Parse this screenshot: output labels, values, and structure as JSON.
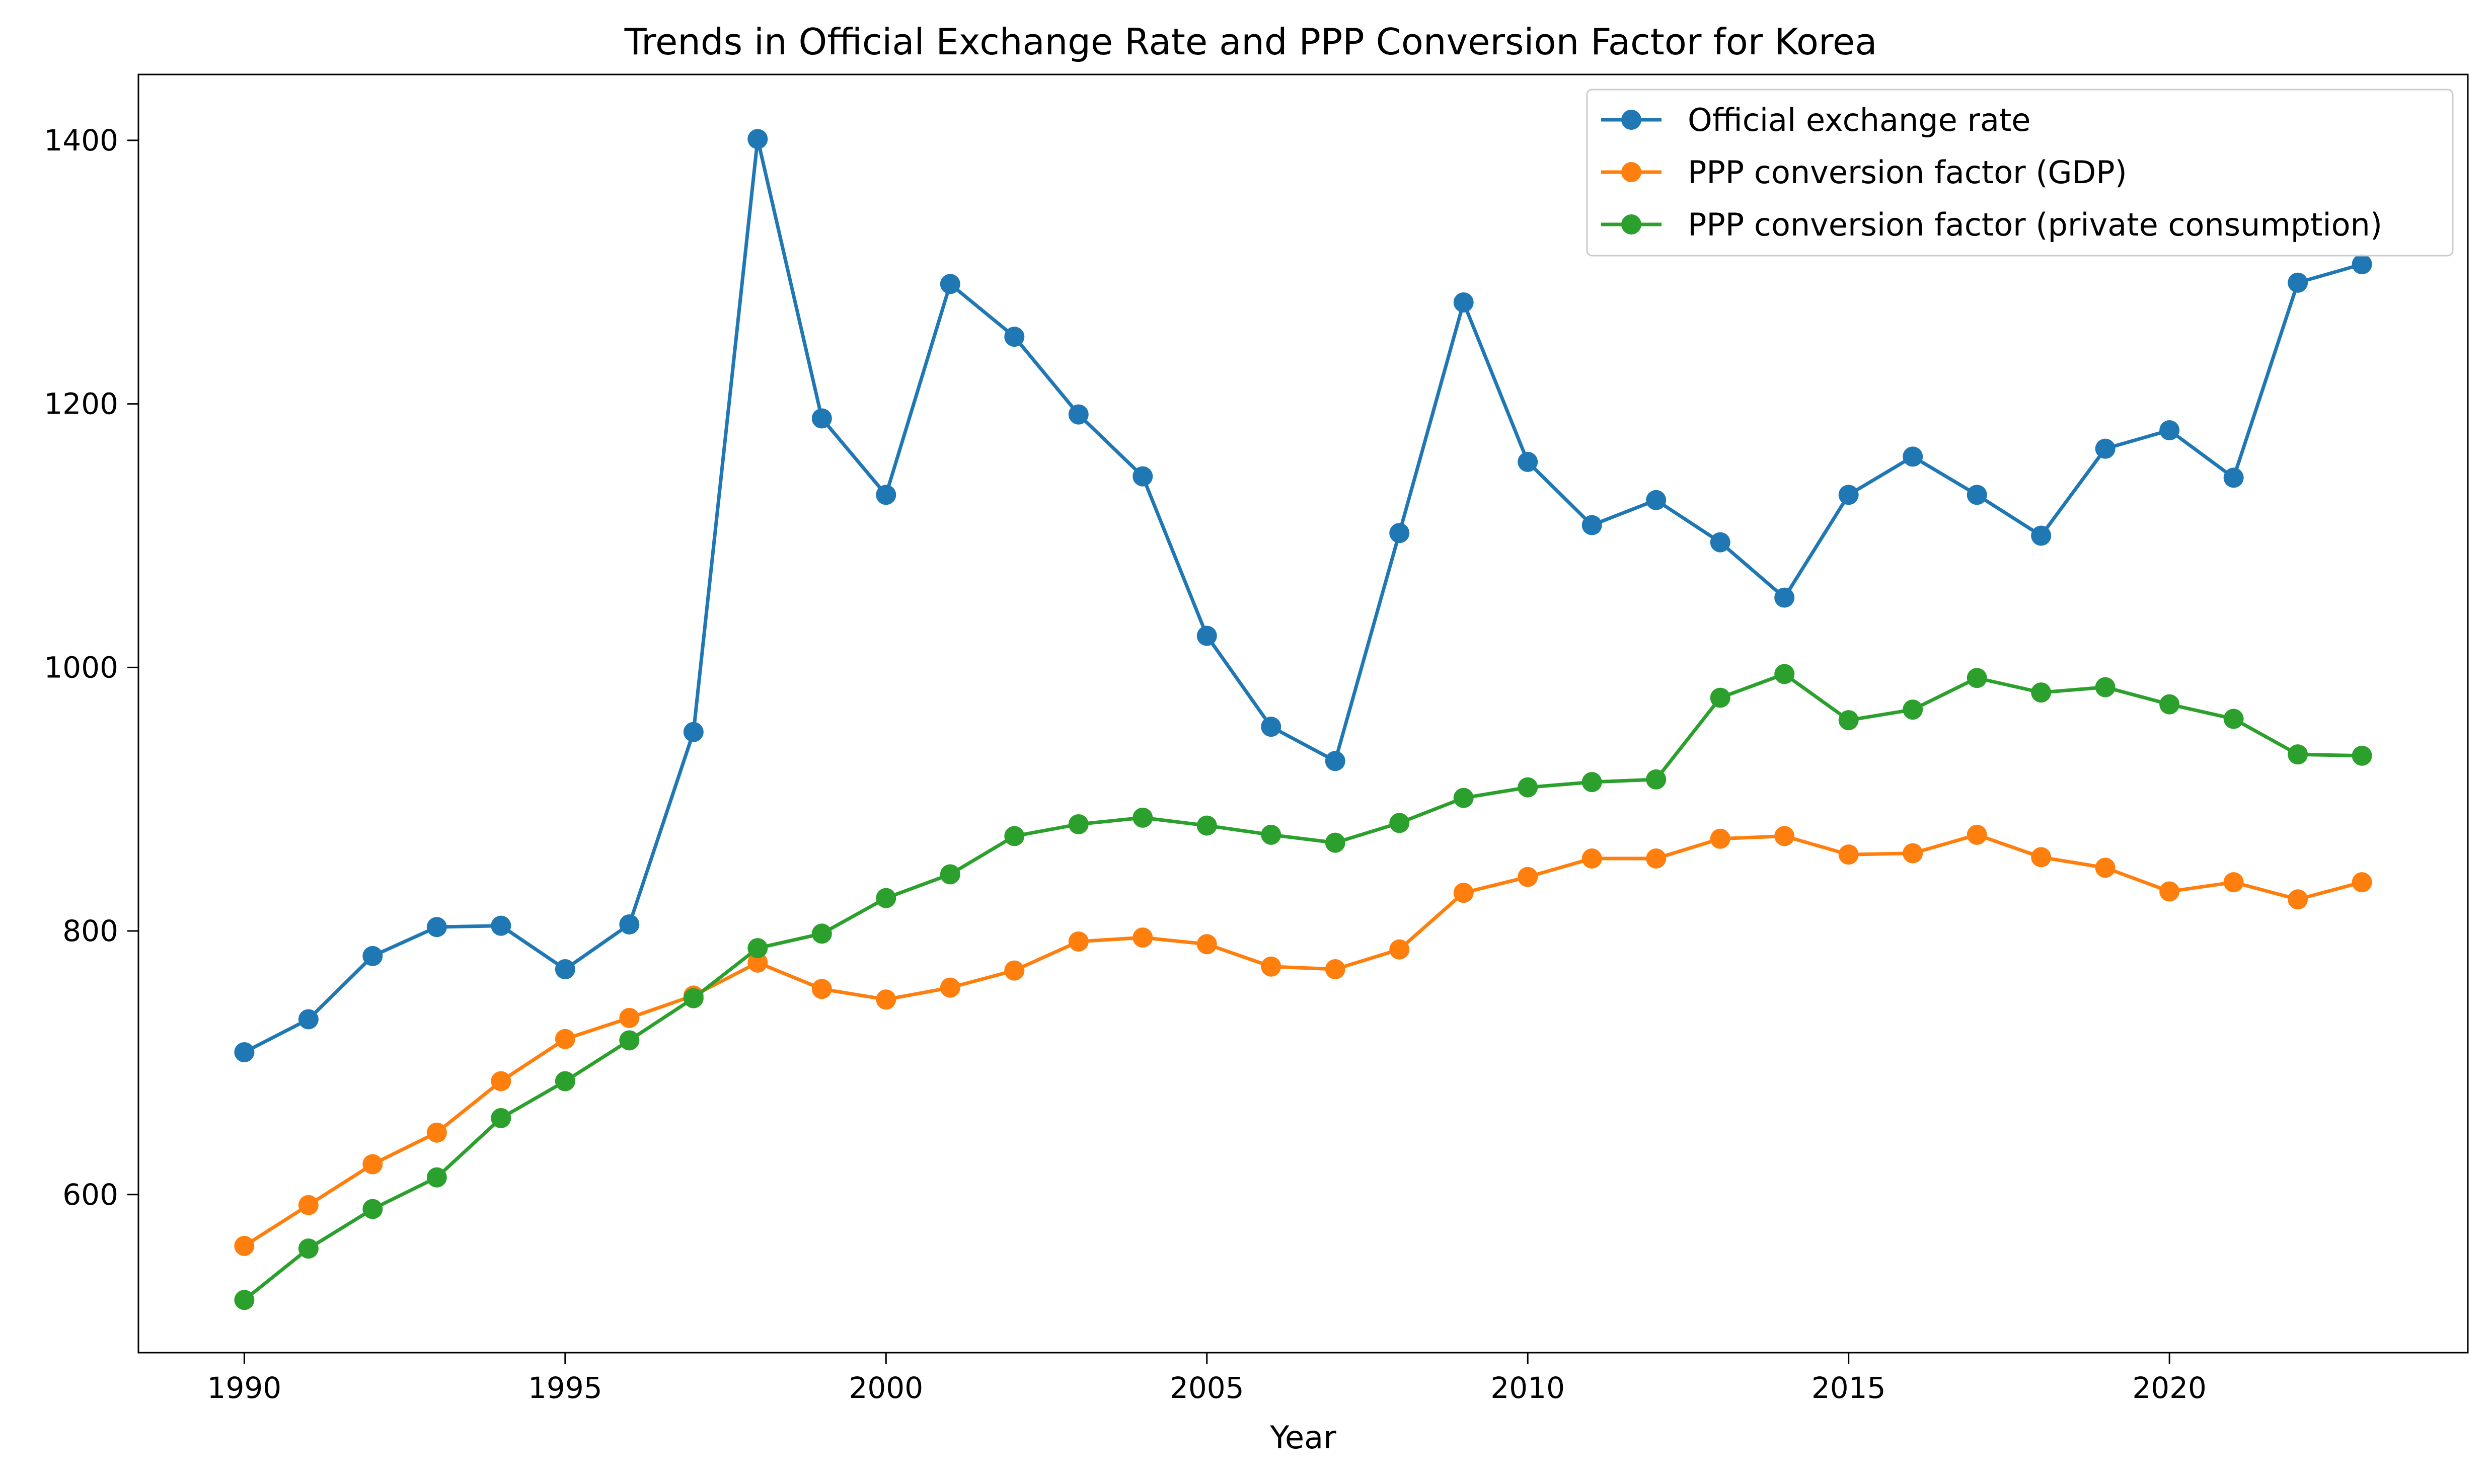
{
  "chart_data": {
    "type": "line",
    "title": "Trends in Official Exchange Rate and PPP Conversion Factor for Korea",
    "xlabel": "Year",
    "ylabel": "",
    "xlim": [
      1988.35,
      2024.65
    ],
    "ylim": [
      480,
      1450
    ],
    "x_ticks": [
      1990,
      1995,
      2000,
      2005,
      2010,
      2015,
      2020
    ],
    "y_ticks": [
      600,
      800,
      1000,
      1200,
      1400
    ],
    "grid": false,
    "legend_position": "upper right",
    "x": [
      1990,
      1991,
      1992,
      1993,
      1994,
      1995,
      1996,
      1997,
      1998,
      1999,
      2000,
      2001,
      2002,
      2003,
      2004,
      2005,
      2006,
      2007,
      2008,
      2009,
      2010,
      2011,
      2012,
      2013,
      2014,
      2015,
      2016,
      2017,
      2018,
      2019,
      2020,
      2021,
      2022,
      2023
    ],
    "series": [
      {
        "name": "Official exchange rate",
        "color": "#1f77b4",
        "values": [
          708,
          733,
          781,
          803,
          804,
          771,
          805,
          951,
          1401,
          1189,
          1131,
          1291,
          1251,
          1192,
          1145,
          1024,
          955,
          929,
          1102,
          1277,
          1156,
          1108,
          1127,
          1095,
          1053,
          1131,
          1160,
          1131,
          1100,
          1166,
          1180,
          1144,
          1292,
          1306
        ]
      },
      {
        "name": "PPP conversion factor (GDP)",
        "color": "#ff7f0e",
        "values": [
          561,
          592,
          623,
          647,
          686,
          718,
          734,
          751,
          776,
          756,
          748,
          757,
          770,
          792,
          795,
          790,
          773,
          771,
          786,
          829,
          841,
          855,
          855,
          870,
          872,
          858,
          859,
          873,
          856,
          848,
          830,
          837,
          824,
          837
        ]
      },
      {
        "name": "PPP conversion factor (private consumption)",
        "color": "#2ca02c",
        "values": [
          520,
          559,
          589,
          613,
          658,
          686,
          717,
          749,
          787,
          798,
          825,
          843,
          872,
          881,
          886,
          880,
          873,
          867,
          882,
          901,
          909,
          913,
          915,
          977,
          995,
          960,
          968,
          992,
          981,
          985,
          972,
          961,
          934,
          933
        ]
      }
    ]
  }
}
